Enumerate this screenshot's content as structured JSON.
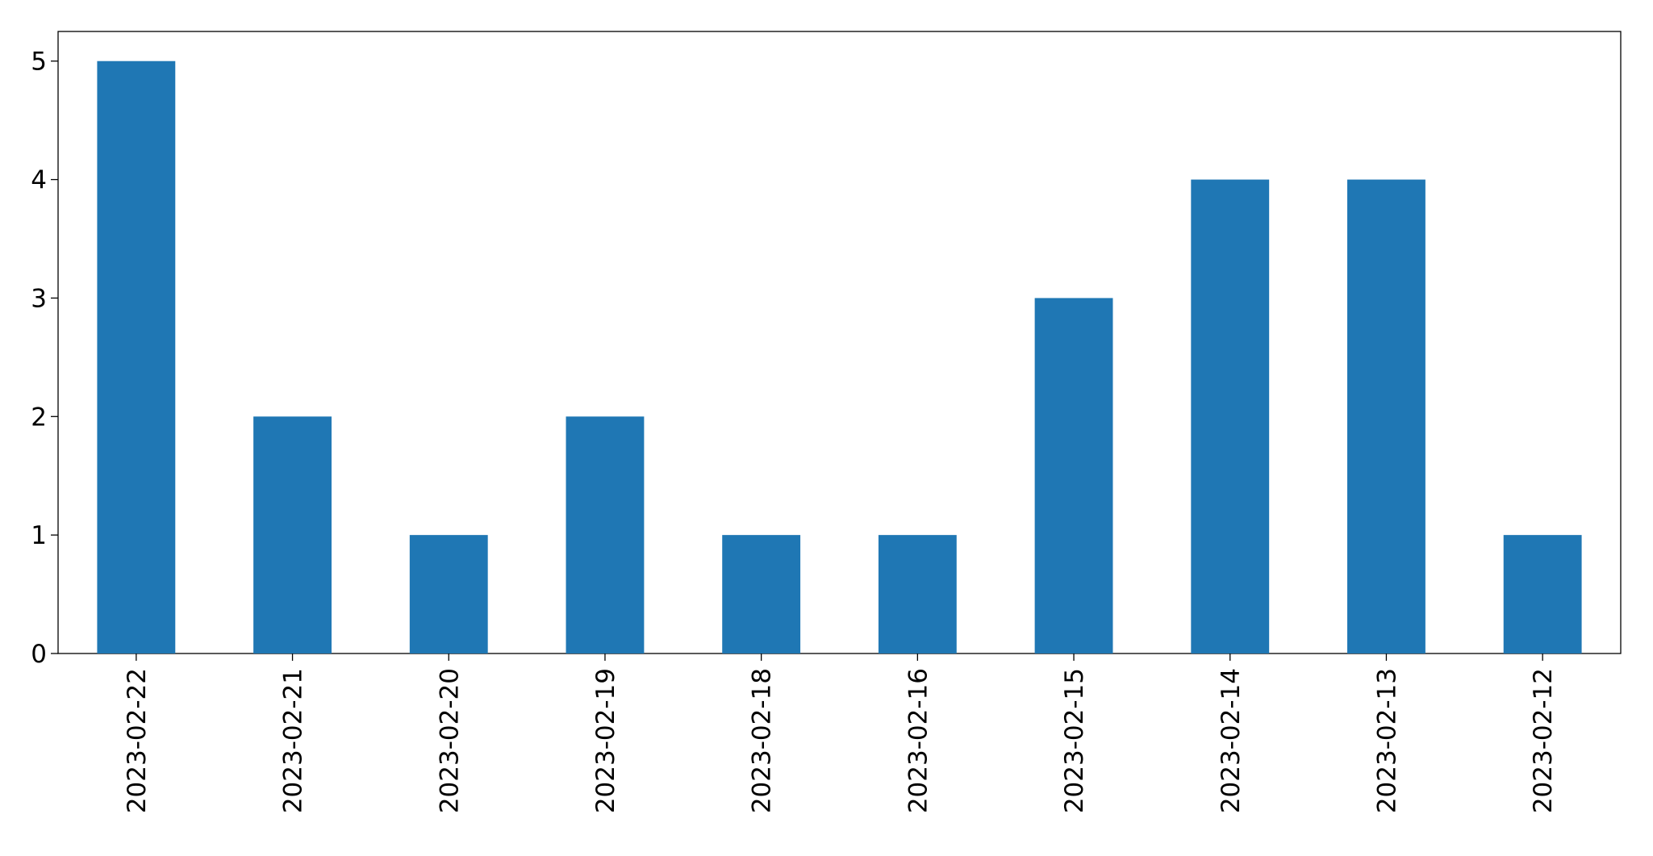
{
  "chart_data": {
    "type": "bar",
    "categories": [
      "2023-02-22",
      "2023-02-21",
      "2023-02-20",
      "2023-02-19",
      "2023-02-18",
      "2023-02-16",
      "2023-02-15",
      "2023-02-14",
      "2023-02-13",
      "2023-02-12"
    ],
    "values": [
      5,
      2,
      1,
      2,
      1,
      1,
      3,
      4,
      4,
      1
    ],
    "color": "#1f77b4",
    "ylim": [
      0,
      5.25
    ],
    "yticks": [
      0,
      1,
      2,
      3,
      4,
      5
    ],
    "grid": false
  }
}
